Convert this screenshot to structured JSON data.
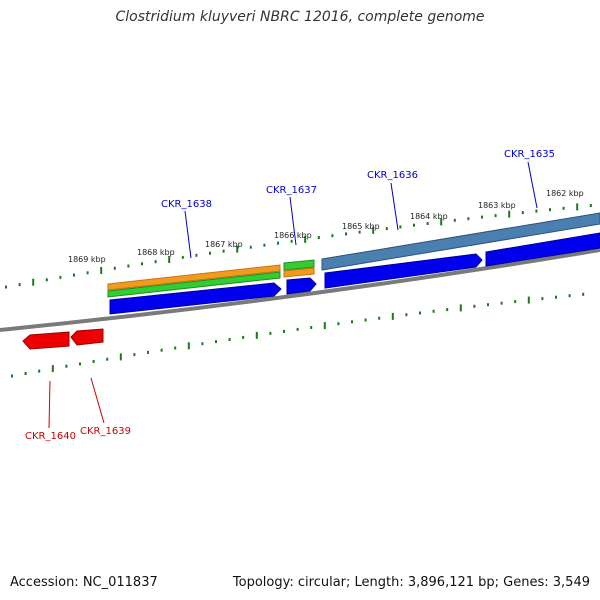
{
  "title": "Clostridium kluyveri NBRC 12016, complete genome",
  "footer": {
    "accession": "Accession: NC_011837",
    "summary": "Topology: circular; Length: 3,896,121 bp; Genes: 3,549"
  },
  "scale": {
    "ticks": [
      "1869 kbp",
      "1868 kbp",
      "1867 kbp",
      "1866 kbp",
      "1865 kbp",
      "1864 kbp",
      "1863 kbp",
      "1862 kbp"
    ]
  },
  "genes": [
    {
      "name": "CKR_1635",
      "strand": "forward",
      "color": "#0000cc"
    },
    {
      "name": "CKR_1636",
      "strand": "forward",
      "color": "#0000cc"
    },
    {
      "name": "CKR_1637",
      "strand": "forward",
      "color": "#0000cc"
    },
    {
      "name": "CKR_1638",
      "strand": "forward",
      "color": "#0000cc"
    },
    {
      "name": "CKR_1639",
      "strand": "reverse",
      "color": "#cc0000"
    },
    {
      "name": "CKR_1640",
      "strand": "reverse",
      "color": "#cc0000"
    }
  ],
  "colors": {
    "backbone": "#7a7a7a",
    "forward_gene": "#0000ee",
    "reverse_gene": "#ee0000",
    "tick": "#1a7a1a",
    "feature_orange": "#f29a1e",
    "feature_green": "#33cc33",
    "feature_steelblue": "#4a7fb0"
  }
}
